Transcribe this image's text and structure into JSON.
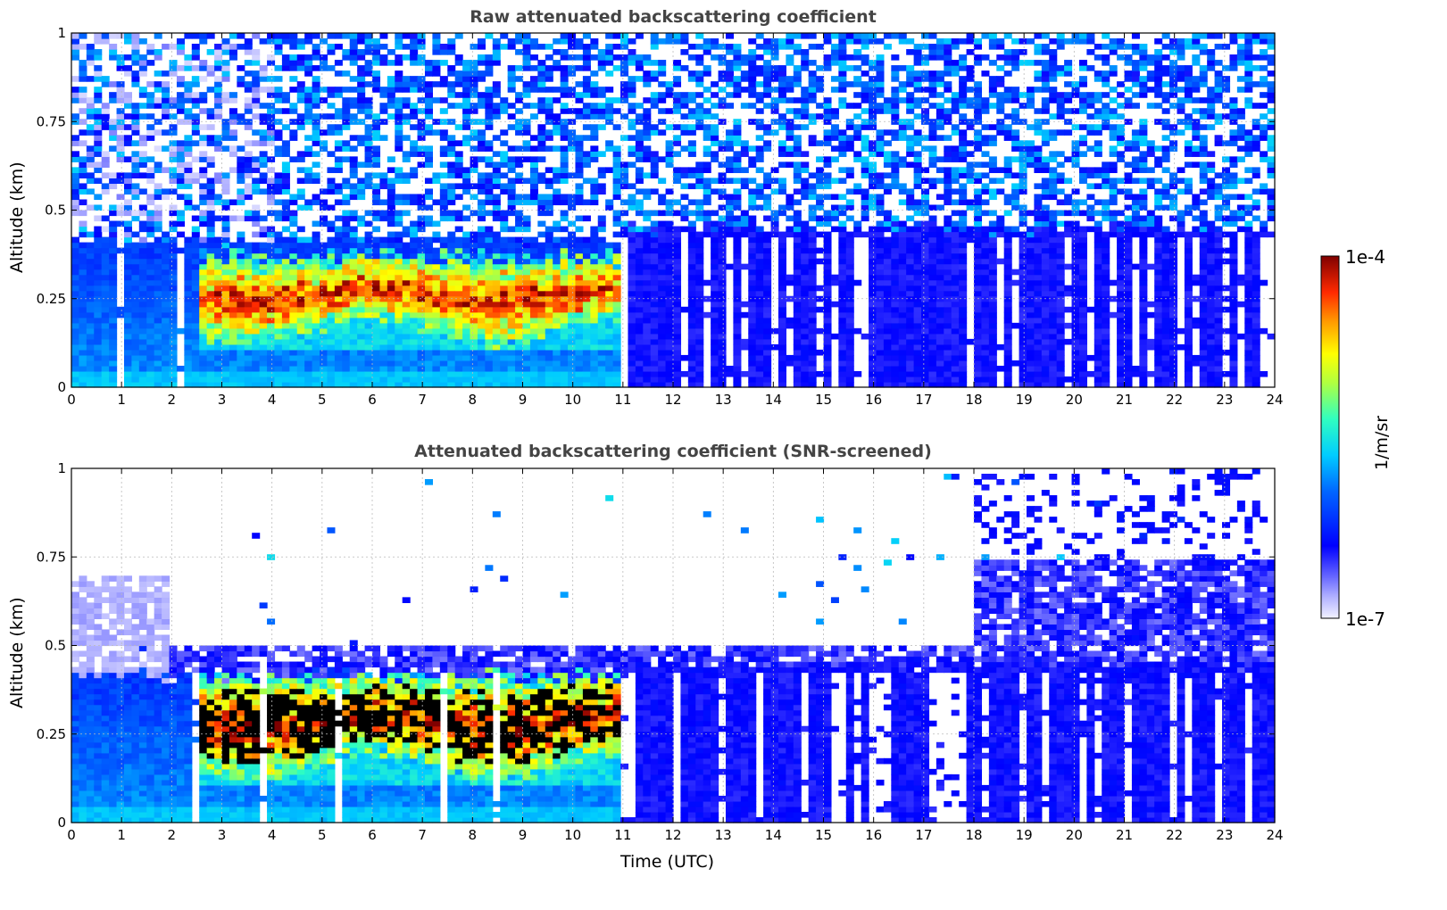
{
  "chart_data": [
    {
      "type": "heatmap",
      "title": "Raw attenuated backscattering coefficient",
      "xlabel": "",
      "ylabel": "Altitude (km)",
      "xlim": [
        0,
        24
      ],
      "ylim": [
        0,
        1
      ],
      "xticks": [
        "0",
        "1",
        "2",
        "3",
        "4",
        "5",
        "6",
        "7",
        "8",
        "9",
        "10",
        "11",
        "12",
        "13",
        "14",
        "15",
        "16",
        "17",
        "18",
        "19",
        "20",
        "21",
        "22",
        "23",
        "24"
      ],
      "yticks": [
        "0",
        "0.25",
        "0.5",
        "0.75",
        "1"
      ],
      "grid": true,
      "features": {
        "aerosol_layer_top_km": 0.42,
        "aerosol_layer_end_utc": 11,
        "cloud_layer": {
          "start_utc": 2.5,
          "end_utc": 11,
          "base_km": 0.15,
          "top_km": 0.4
        },
        "noise_above_km": 0.42
      }
    },
    {
      "type": "heatmap",
      "title": "Attenuated backscattering coefficient (SNR-screened)",
      "xlabel": "Time (UTC)",
      "ylabel": "Altitude (km)",
      "xlim": [
        0,
        24
      ],
      "ylim": [
        0,
        1
      ],
      "xticks": [
        "0",
        "1",
        "2",
        "3",
        "4",
        "5",
        "6",
        "7",
        "8",
        "9",
        "10",
        "11",
        "12",
        "13",
        "14",
        "15",
        "16",
        "17",
        "18",
        "19",
        "20",
        "21",
        "22",
        "23",
        "24"
      ],
      "yticks": [
        "0",
        "0.25",
        "0.5",
        "0.75",
        "1"
      ],
      "grid": true,
      "features": {
        "aerosol_layer_top_km": 0.42,
        "cloud_layer": {
          "start_utc": 2.5,
          "end_utc": 11,
          "base_km": 0.15,
          "top_km": 0.45
        },
        "screened_top_km_after_18utc": 0.75
      }
    }
  ],
  "colorbar": {
    "max_label": "1e-4",
    "min_label": "1e-7",
    "unit": "1/m/sr",
    "colormap": "jet",
    "scale": "log"
  }
}
